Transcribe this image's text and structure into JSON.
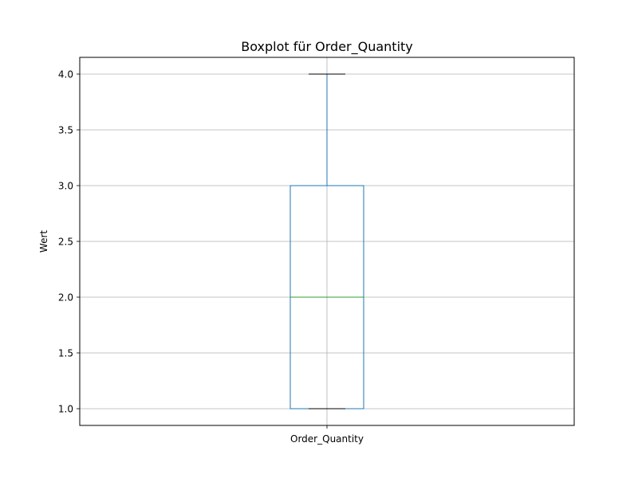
{
  "chart_data": {
    "type": "boxplot",
    "title": "Boxplot für Order_Quantity",
    "xlabel": "",
    "ylabel": "Wert",
    "categories": [
      "Order_Quantity"
    ],
    "boxes": [
      {
        "whisker_low": 1.0,
        "q1": 1.0,
        "median": 2.0,
        "q3": 3.0,
        "whisker_high": 4.0
      }
    ],
    "ylim": [
      0.85,
      4.15
    ],
    "yticks": [
      1.0,
      1.5,
      2.0,
      2.5,
      3.0,
      3.5,
      4.0
    ],
    "ytick_labels": [
      "1.0",
      "1.5",
      "2.0",
      "2.5",
      "3.0",
      "3.5",
      "4.0"
    ],
    "grid": true,
    "colors": {
      "box": "#1f77b4",
      "median": "#2ca02c",
      "cap": "#000000",
      "grid": "#b0b0b0"
    }
  }
}
